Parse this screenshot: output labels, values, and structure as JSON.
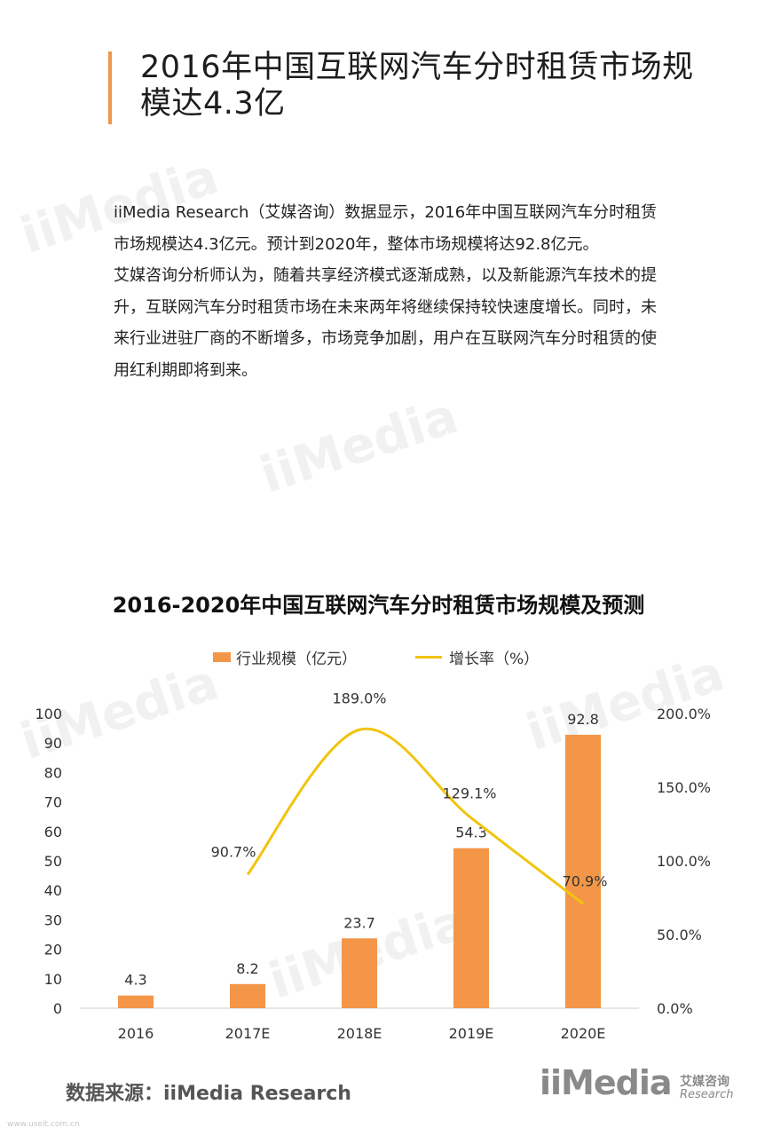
{
  "header": {
    "title": "2016年中国互联网汽车分时租赁市场规模达4.3亿"
  },
  "body": {
    "paragraph_1": "iiMedia Research（艾媒咨询）数据显示，2016年中国互联网汽车分时租赁市场规模达4.3亿元。预计到2020年，整体市场规模将达92.8亿元。",
    "paragraph_2": "艾媒咨询分析师认为，随着共享经济模式逐渐成熟，以及新能源汽车技术的提升，互联网汽车分时租赁市场在未来两年将继续保持较快速度增长。同时，未来行业进驻厂商的不断增多，市场竞争加剧，用户在互联网汽车分时租赁的使用红利期即将到来。"
  },
  "chart_data": {
    "type": "bar",
    "title": "2016-2020年中国互联网汽车分时租赁市场规模及预测",
    "categories": [
      "2016",
      "2017E",
      "2018E",
      "2019E",
      "2020E"
    ],
    "series": [
      {
        "name": "行业规模（亿元）",
        "type": "bar",
        "axis": "left",
        "color": "#f39647",
        "values": [
          4.3,
          8.2,
          23.7,
          54.3,
          92.8
        ],
        "labels": [
          "4.3",
          "8.2",
          "23.7",
          "54.3",
          "92.8"
        ]
      },
      {
        "name": "增长率（%）",
        "type": "line",
        "axis": "right",
        "color": "#f1c40f",
        "values": [
          null,
          90.7,
          189.0,
          129.1,
          70.9
        ],
        "labels": [
          "",
          "90.7%",
          "189.0%",
          "129.1%",
          "70.9%"
        ]
      }
    ],
    "left_axis": {
      "ylim": [
        0,
        100
      ],
      "ticks": [
        0,
        10,
        20,
        30,
        40,
        50,
        60,
        70,
        80,
        90,
        100
      ],
      "tick_labels": [
        "0",
        "10",
        "20",
        "30",
        "40",
        "50",
        "60",
        "70",
        "80",
        "90",
        "100"
      ]
    },
    "right_axis": {
      "ylim": [
        0,
        200
      ],
      "ticks": [
        0,
        50,
        100,
        150,
        200
      ],
      "tick_labels": [
        "0.0%",
        "50.0%",
        "100.0%",
        "150.0%",
        "200.0%"
      ]
    },
    "grid": false,
    "legend_position": "top"
  },
  "footer": {
    "source": "数据来源：iiMedia Research",
    "logo_text": "iiMedia",
    "logo_cn": "艾媒咨询",
    "logo_en": "Research",
    "site": "www.useit.com.cn"
  },
  "colors": {
    "accent": "#f0974a",
    "bar": "#f39647",
    "line": "#f1c40f"
  }
}
